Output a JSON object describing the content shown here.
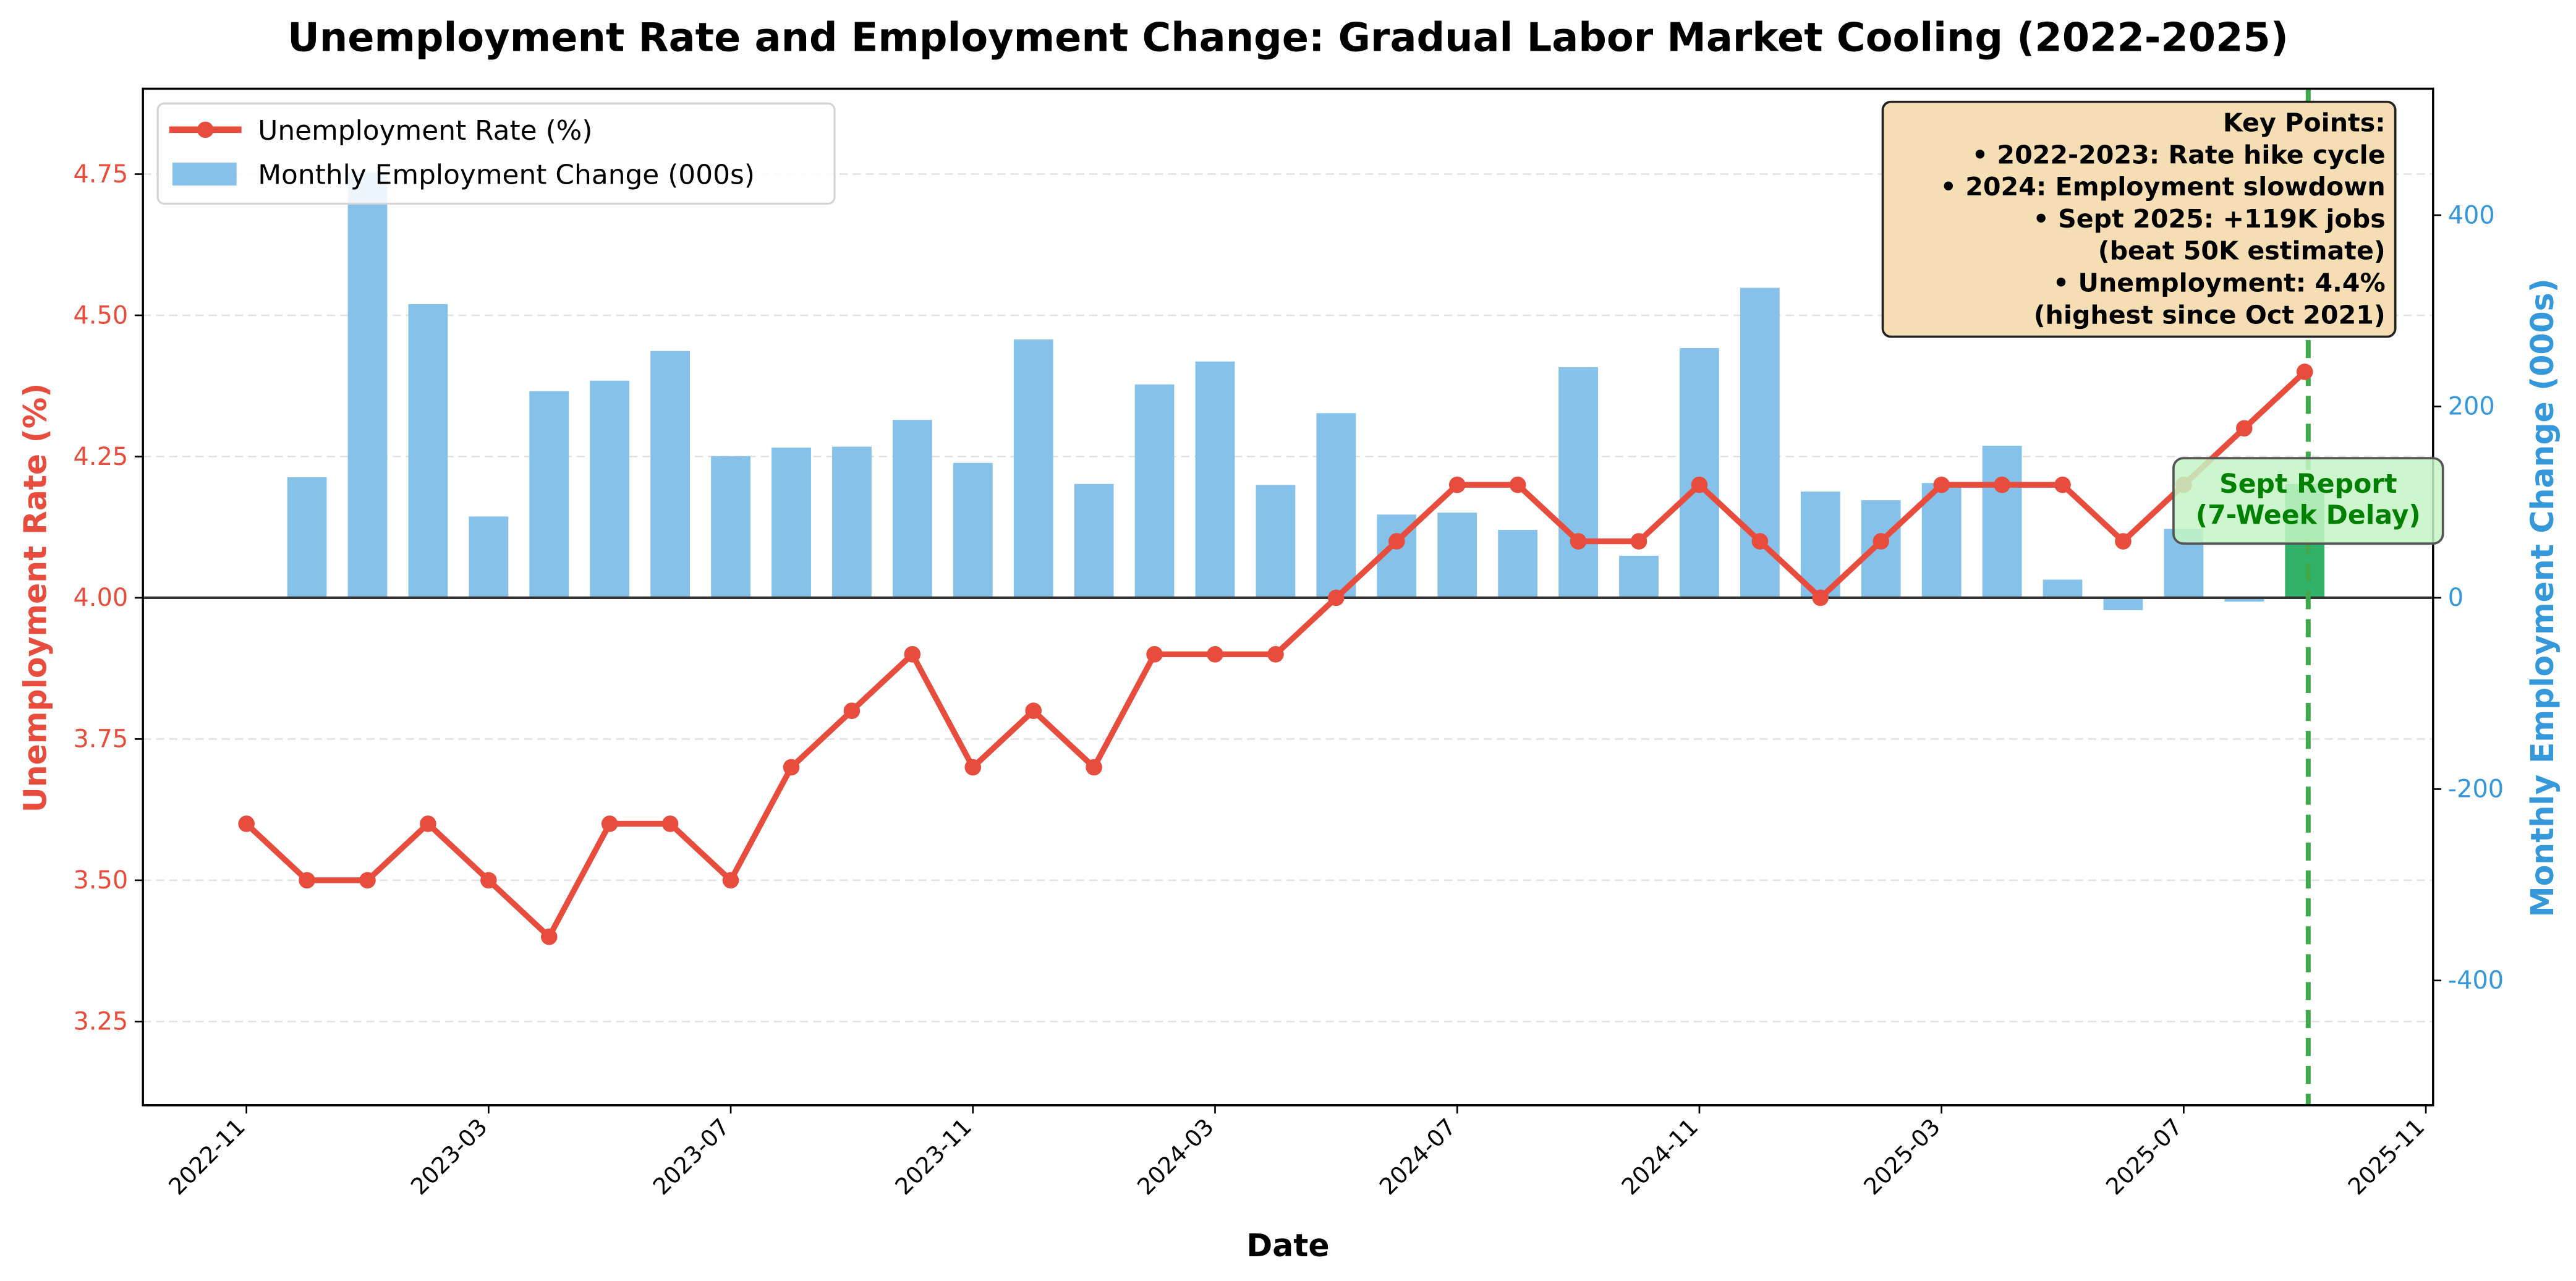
{
  "title": "Unemployment Rate and Employment Change: Gradual Labor Market Cooling (2022-2025)",
  "axes": {
    "x_label": "Date",
    "y_left_label": "Unemployment Rate (%)",
    "y_right_label": "Monthly Employment Change (000s)",
    "x_ticks": [
      "2022-11",
      "2023-03",
      "2023-07",
      "2023-11",
      "2024-03",
      "2024-07",
      "2024-11",
      "2025-03",
      "2025-07",
      "2025-11"
    ],
    "y_left_ticks": [
      "3.25",
      "3.50",
      "3.75",
      "4.00",
      "4.25",
      "4.50",
      "4.75"
    ],
    "y_right_ticks": [
      "-400",
      "-200",
      "0",
      "200",
      "400"
    ]
  },
  "legend": {
    "line_label": "Unemployment Rate (%)",
    "bar_label": "Monthly Employment Change (000s)"
  },
  "annotations": {
    "key_points_box": [
      "Key Points:",
      "• 2022-2023: Rate hike cycle",
      "• 2024: Employment slowdown",
      "• Sept 2025: +119K jobs",
      "(beat 50K estimate)",
      "• Unemployment: 4.4%",
      "(highest since Oct 2021)"
    ],
    "sept_report": [
      "Sept Report",
      "(7-Week Delay)"
    ]
  },
  "colors": {
    "line": "#e74c3c",
    "bars": "#85c1e9",
    "highlight_bar": "#27ae60",
    "vline": "#2e9e3e",
    "note_box": "#f5deb3",
    "sept_box": "#c6f5c6",
    "sept_text": "#008000"
  },
  "chart_data": {
    "type": "bar+line",
    "title": "Unemployment Rate and Employment Change: Gradual Labor Market Cooling (2022-2025)",
    "xlabel": "Date",
    "ylabel_left": "Unemployment Rate (%)",
    "ylabel_right": "Monthly Employment Change (000s)",
    "ylim_left": [
      3.1,
      4.9
    ],
    "ylim_right": [
      -530,
      530
    ],
    "grid": "horizontal dashed",
    "legend_position": "upper left",
    "x": [
      "2022-11",
      "2022-12",
      "2023-01",
      "2023-02",
      "2023-03",
      "2023-04",
      "2023-05",
      "2023-06",
      "2023-07",
      "2023-08",
      "2023-09",
      "2023-10",
      "2023-11",
      "2023-12",
      "2024-01",
      "2024-02",
      "2024-03",
      "2024-04",
      "2024-05",
      "2024-06",
      "2024-07",
      "2024-08",
      "2024-09",
      "2024-10",
      "2024-11",
      "2024-12",
      "2025-01",
      "2025-02",
      "2025-03",
      "2025-04",
      "2025-05",
      "2025-06",
      "2025-07",
      "2025-08",
      "2025-09"
    ],
    "series": [
      {
        "name": "Unemployment Rate (%)",
        "type": "line",
        "axis": "left",
        "values": [
          3.6,
          3.5,
          3.5,
          3.6,
          3.5,
          3.4,
          3.6,
          3.6,
          3.5,
          3.7,
          3.8,
          3.9,
          3.7,
          3.8,
          3.7,
          3.9,
          3.9,
          3.9,
          4.0,
          4.1,
          4.2,
          4.2,
          4.1,
          4.1,
          4.2,
          4.1,
          4.0,
          4.1,
          4.2,
          4.2,
          4.2,
          4.1,
          4.2,
          4.3,
          4.4
        ]
      },
      {
        "name": "Monthly Employment Change (000s)",
        "type": "bar",
        "axis": "right",
        "values": [
          null,
          126,
          445,
          307,
          85,
          216,
          227,
          258,
          148,
          157,
          158,
          186,
          141,
          270,
          119,
          223,
          247,
          118,
          193,
          87,
          89,
          71,
          241,
          44,
          261,
          324,
          111,
          102,
          120,
          159,
          19,
          -13,
          72,
          -4,
          119
        ]
      }
    ],
    "annotations": [
      "Vertical dashed line at 2025-09",
      "Sept 2025 bar highlighted green (119)"
    ]
  }
}
